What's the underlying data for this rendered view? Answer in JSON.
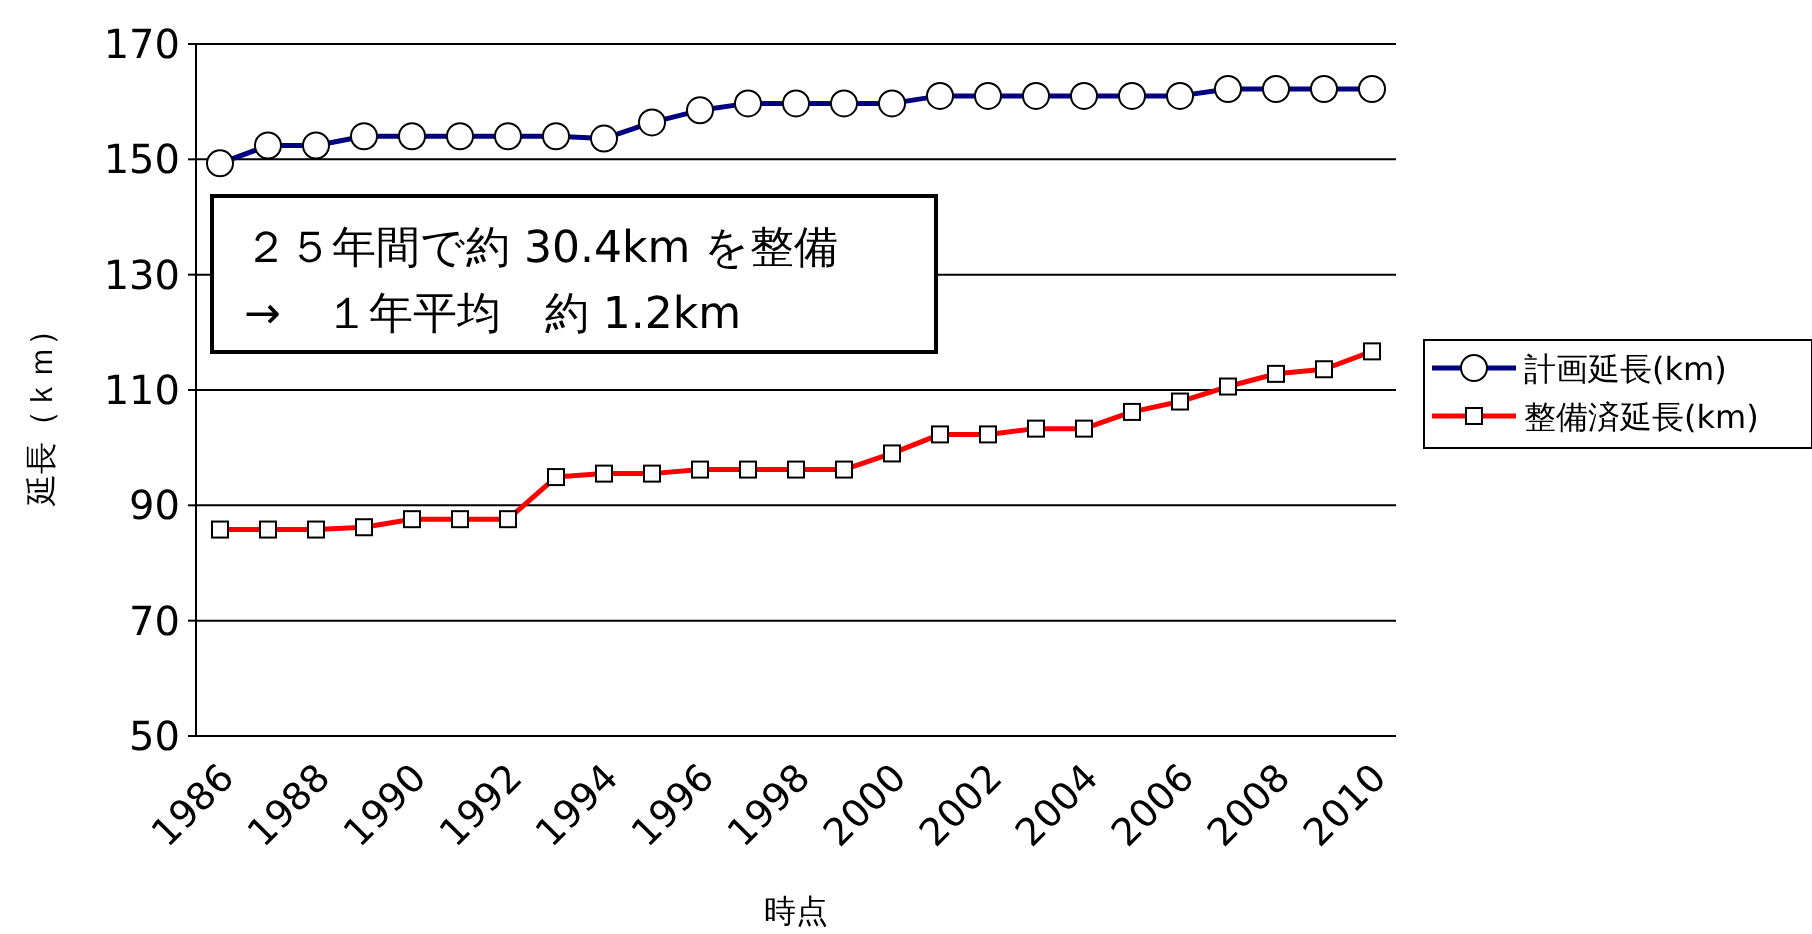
{
  "chart_data": {
    "type": "line",
    "xlabel": "時点",
    "ylabel": "延長（ｋｍ）",
    "categories": [
      "1986",
      null,
      "1988",
      null,
      "1990",
      null,
      "1992",
      null,
      "1994",
      null,
      "1996",
      null,
      "1998",
      null,
      "2000",
      null,
      "2002",
      null,
      "2004",
      null,
      "2006",
      null,
      "2008",
      null,
      "2010"
    ],
    "series": [
      {
        "name": "計画延長(km)",
        "color": "#000080",
        "marker": "circle",
        "values": [
          149.3,
          152.4,
          152.4,
          154.0,
          154.0,
          154.0,
          154.0,
          154.0,
          153.6,
          156.4,
          158.5,
          159.7,
          159.7,
          159.7,
          159.7,
          161.0,
          161.0,
          161.0,
          161.0,
          161.0,
          161.0,
          162.2,
          162.2,
          162.2,
          162.2
        ]
      },
      {
        "name": "整備済延長(km)",
        "color": "#ff0000",
        "marker": "square",
        "values": [
          85.8,
          85.8,
          85.8,
          86.2,
          87.6,
          87.6,
          87.6,
          94.9,
          95.5,
          95.5,
          96.2,
          96.2,
          96.2,
          96.2,
          99.0,
          102.3,
          102.3,
          103.3,
          103.3,
          106.2,
          108.0,
          110.6,
          112.8,
          113.6,
          116.7
        ]
      }
    ],
    "ylim": [
      50,
      170
    ],
    "yticks": [
      50,
      70,
      90,
      110,
      130,
      150,
      170
    ],
    "grid": "y",
    "legend": "right",
    "annotations": [
      "２５年間で約 30.4km を整備",
      "→　１年平均　約 1.2km"
    ]
  }
}
